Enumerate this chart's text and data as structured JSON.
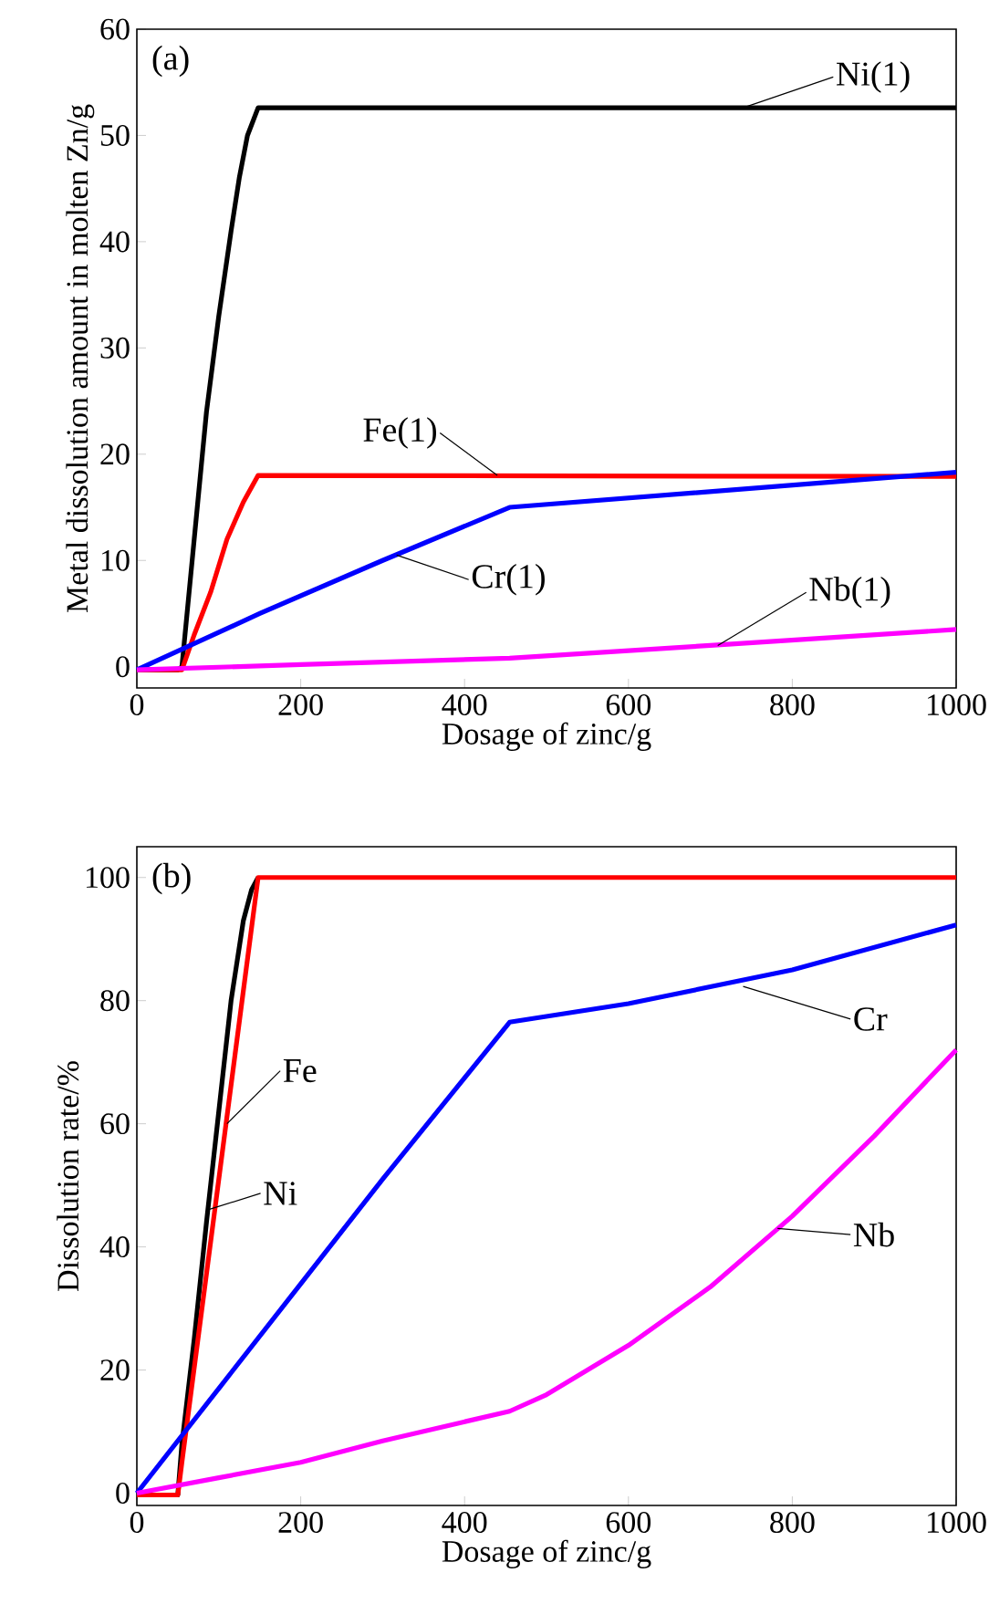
{
  "chart_data": [
    {
      "type": "line",
      "xlabel": "Dosage of zinc/g",
      "ylabel": "Metal dissolution amount in molten Zn/g",
      "xlim": [
        0,
        1000
      ],
      "ylim": [
        -2,
        60
      ],
      "xticks": [
        0,
        200,
        400,
        600,
        800,
        1000
      ],
      "yticks": [
        0,
        10,
        20,
        30,
        40,
        50,
        60
      ],
      "annotations": [
        "(a)",
        {
          "text": "Ni(1)",
          "x": 740,
          "y": 52.6
        },
        {
          "text": "Fe(1)",
          "x": 440,
          "y": 18
        },
        {
          "text": "Cr(1)",
          "x": 317,
          "y": 10.5
        },
        {
          "text": "Nb(1)",
          "x": 709,
          "y": 2
        }
      ],
      "series": [
        {
          "color": "#000000",
          "x": [
            0,
            50,
            55,
            70,
            85,
            100,
            115,
            125,
            135,
            148,
            1000
          ],
          "values": [
            -0.3,
            -0.3,
            0,
            12,
            24,
            33,
            41,
            46,
            50,
            52.6,
            52.6
          ]
        },
        {
          "color": "#ff0000",
          "x": [
            0,
            55,
            70,
            90,
            110,
            130,
            148,
            1000
          ],
          "values": [
            -0.3,
            -0.3,
            3,
            7,
            12,
            15.5,
            18,
            17.9
          ]
        },
        {
          "color": "#0000ff",
          "x": [
            0,
            150,
            300,
            455,
            1000
          ],
          "values": [
            -0.3,
            5,
            10,
            15,
            18.3
          ]
        },
        {
          "color": "#ff00ff",
          "x": [
            0,
            200,
            455,
            700,
            1000
          ],
          "values": [
            -0.3,
            0.2,
            0.8,
            2,
            3.5
          ]
        }
      ]
    },
    {
      "type": "line",
      "xlabel": "Dosage of zinc/g",
      "ylabel": "Dissolution rate/%",
      "xlim": [
        0,
        1000
      ],
      "ylim": [
        -2,
        105
      ],
      "xticks": [
        0,
        200,
        400,
        600,
        800,
        1000
      ],
      "yticks": [
        0,
        20,
        40,
        60,
        80,
        100
      ],
      "annotations": [
        "(b)",
        {
          "text": "Fe",
          "x": 110,
          "y": 60
        },
        {
          "text": "Ni",
          "x": 86,
          "y": 46
        },
        {
          "text": "Cr",
          "x": 740,
          "y": 82.3
        },
        {
          "text": "Nb",
          "x": 782,
          "y": 43
        }
      ],
      "series": [
        {
          "color": "#000000",
          "x": [
            0,
            50,
            55,
            70,
            85,
            100,
            115,
            130,
            140,
            148
          ],
          "values": [
            -0.3,
            -0.3,
            8,
            25,
            44,
            62,
            80,
            93,
            98,
            100
          ]
        },
        {
          "color": "#ff0000",
          "x": [
            0,
            50,
            55,
            148,
            1000
          ],
          "values": [
            -0.3,
            -0.3,
            5,
            100,
            100
          ]
        },
        {
          "color": "#0000ff",
          "x": [
            0,
            100,
            200,
            300,
            455,
            600,
            800,
            1000
          ],
          "values": [
            0,
            17,
            34,
            51,
            76.5,
            79.5,
            85,
            92.3
          ]
        },
        {
          "color": "#ff00ff",
          "x": [
            0,
            100,
            200,
            300,
            455,
            500,
            600,
            700,
            800,
            900,
            1000
          ],
          "values": [
            0,
            2.5,
            5,
            8.5,
            13.3,
            16,
            24,
            33.5,
            45,
            58,
            72
          ]
        }
      ]
    }
  ]
}
